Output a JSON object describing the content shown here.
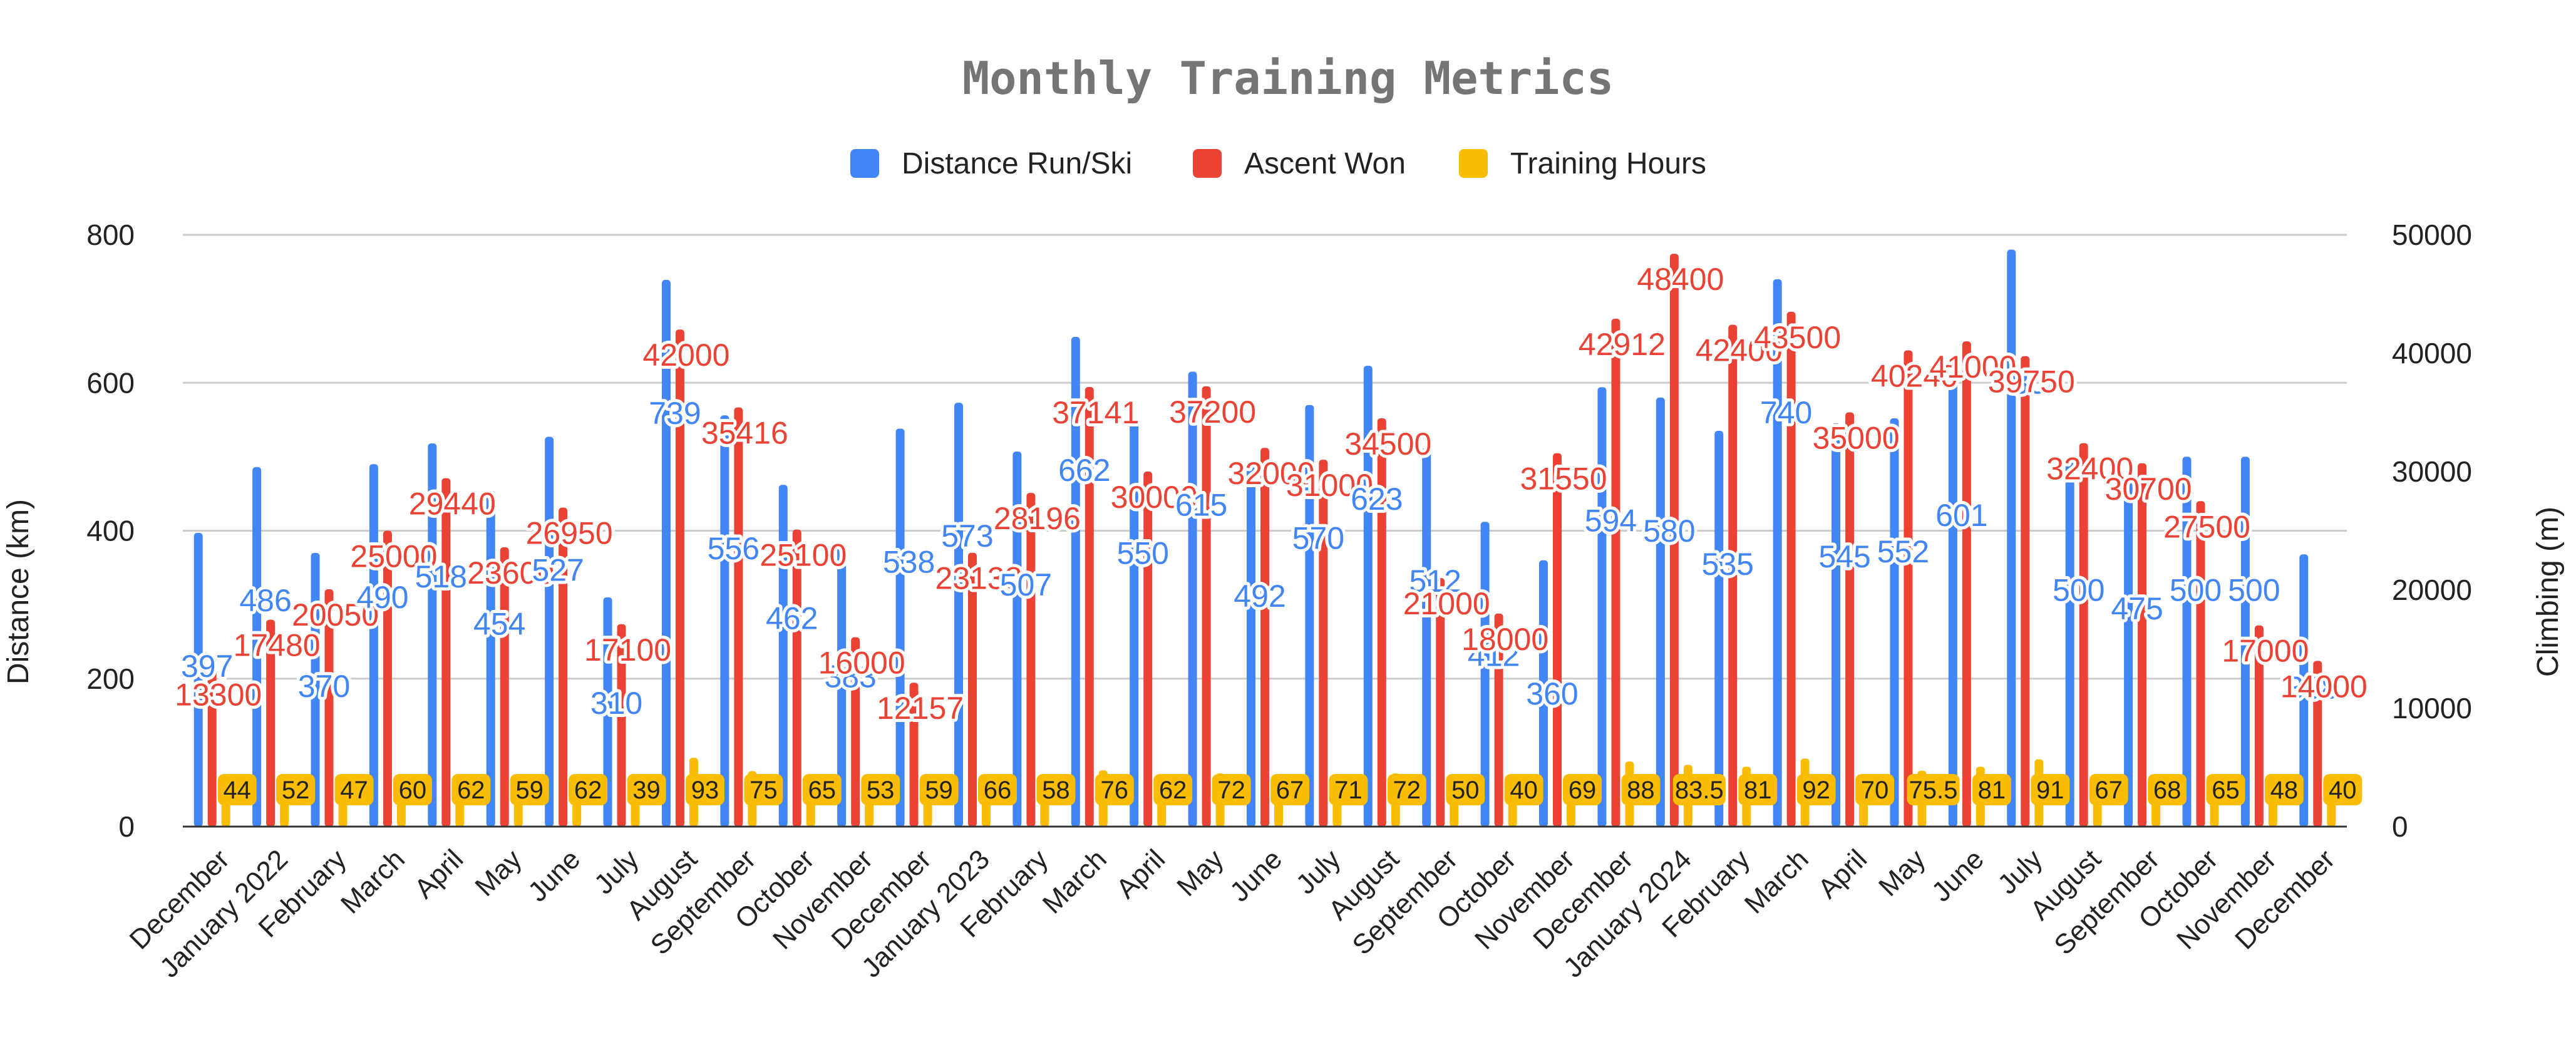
{
  "chart_data": {
    "type": "bar",
    "title": "Monthly Training Metrics",
    "ylabel": "Distance (km)",
    "y2label": "Climbing (m)",
    "ylim": [
      0,
      800
    ],
    "y2lim": [
      0,
      50000
    ],
    "yticks": [
      "0",
      "200",
      "400",
      "600",
      "800"
    ],
    "y2ticks": [
      "0",
      "10000",
      "20000",
      "30000",
      "40000",
      "50000"
    ],
    "grid": true,
    "legend_position": "top",
    "categories": [
      "December",
      "January 2022",
      "February",
      "March",
      "April",
      "May",
      "June",
      "July",
      "August",
      "September",
      "October",
      "November",
      "December",
      "January 2023",
      "February",
      "March",
      "April",
      "May",
      "June",
      "July",
      "August",
      "September",
      "October",
      "November",
      "December",
      "January 2024",
      "February",
      "March",
      "April",
      "May",
      "June",
      "July",
      "August",
      "September",
      "October",
      "November",
      "December"
    ],
    "series": [
      {
        "name": "Distance Run/Ski",
        "axis": "left",
        "color": "#4285f4",
        "values": [
          397,
          486,
          370,
          490,
          518,
          454,
          527,
          310,
          739,
          556,
          462,
          383,
          538,
          573,
          507,
          662,
          550,
          615,
          492,
          570,
          623,
          512,
          412,
          360,
          594,
          580,
          535,
          740,
          545,
          552,
          601,
          780,
          500,
          475,
          500,
          500,
          368
        ],
        "labels": [
          "397",
          "486",
          "370",
          "490",
          "518",
          "454",
          "527",
          "310",
          "739",
          "556",
          "462",
          "383",
          "538",
          "573",
          "507",
          "662",
          "550",
          "615",
          "492",
          "570",
          "623",
          "512",
          "412",
          "360",
          "594",
          "580",
          "535",
          "740",
          "545",
          "552",
          "601",
          "780",
          "500",
          "475",
          "500",
          "500",
          "368"
        ]
      },
      {
        "name": "Ascent Won",
        "axis": "right",
        "color": "#ea4335",
        "values": [
          13300,
          17480,
          20050,
          25000,
          29440,
          23600,
          26950,
          17100,
          42000,
          35416,
          25100,
          16000,
          12157,
          23138,
          28196,
          37141,
          30000,
          37200,
          32000,
          31000,
          34500,
          21000,
          18000,
          31550,
          42912,
          48400,
          42400,
          43500,
          35000,
          40240,
          41000,
          39750,
          32400,
          30700,
          27500,
          17000,
          14000
        ],
        "labels": [
          "13300",
          "17480",
          "20050",
          "25000",
          "29440",
          "23600",
          "26950",
          "17100",
          "42000",
          "35416",
          "25100",
          "16000",
          "12157",
          "23138",
          "28196",
          "37141",
          "30000",
          "37200",
          "32000",
          "31000",
          "34500",
          "21000",
          "18000",
          "31550",
          "42912",
          "48400",
          "42400",
          "43500",
          "35000",
          "40240",
          "41000",
          "39750",
          "32400",
          "30700",
          "27500",
          "17000",
          "14000"
        ]
      },
      {
        "name": "Training Hours",
        "axis": "left",
        "color": "#fbbc04",
        "values": [
          44,
          52,
          47,
          60,
          62,
          59,
          62,
          39,
          93,
          75,
          65,
          53,
          59,
          66,
          58,
          76,
          62,
          72,
          67,
          71,
          72,
          50,
          40,
          69,
          88,
          83.5,
          81,
          92,
          70,
          75.5,
          81,
          91,
          67,
          68,
          65,
          48,
          40
        ],
        "labels": [
          "44",
          "52",
          "47",
          "60",
          "62",
          "59",
          "62",
          "39",
          "93",
          "75",
          "65",
          "53",
          "59",
          "66",
          "58",
          "76",
          "62",
          "72",
          "67",
          "71",
          "72",
          "50",
          "40",
          "69",
          "88",
          "83.5",
          "81",
          "92",
          "70",
          "75.5",
          "81",
          "91",
          "67",
          "68",
          "65",
          "48",
          "40"
        ]
      }
    ]
  }
}
